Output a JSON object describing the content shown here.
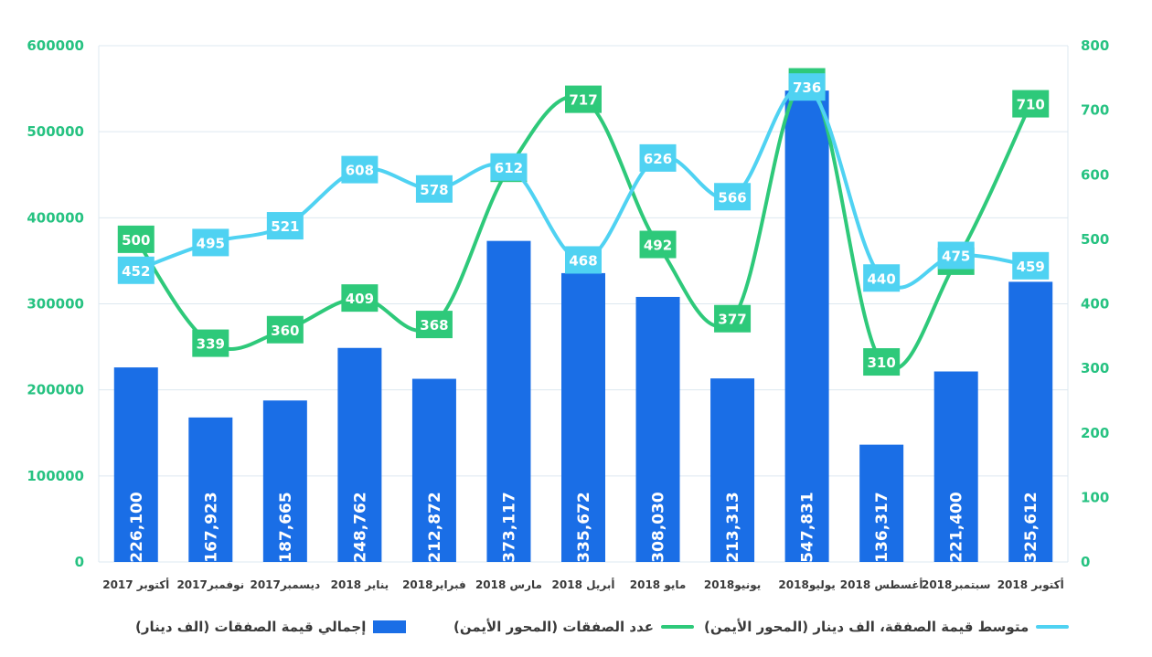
{
  "chart_data": {
    "type": "bar",
    "categories": [
      "أكتوبر 2017",
      "نوفمبر2017",
      "ديسمبر2017",
      "يناير 2018",
      "فبراير2018",
      "مارس 2018",
      "أبريل 2018",
      "مايو 2018",
      "يونيو2018",
      "يوليو2018",
      "أغسطس 2018",
      "سبتمبر2018",
      "أكتوبر 2018"
    ],
    "series": [
      {
        "name": "إجمالي قيمة الصفقات (الف دينار)",
        "type": "bar",
        "axis": "left",
        "values": [
          226100,
          167923,
          187665,
          248762,
          212872,
          373117,
          335672,
          308030,
          213313,
          547831,
          136317,
          221400,
          325612
        ],
        "data_labels": [
          "226,100",
          "167,923",
          "187,665",
          "248,762",
          "212,872",
          "373,117",
          "335,672",
          "308,030",
          "213,313",
          "547,831",
          "136,317",
          "221,400",
          "325,612"
        ]
      },
      {
        "name": "عدد الصفقات (المحور الأيمن)",
        "type": "line",
        "axis": "right",
        "values": [
          500,
          339,
          360,
          409,
          368,
          610,
          717,
          492,
          377,
          744,
          310,
          466,
          710
        ]
      },
      {
        "name": "متوسط قيمة الصفقة، الف دينار (المحور الأيمن)",
        "type": "line",
        "axis": "right",
        "values": [
          452,
          495,
          521,
          608,
          578,
          612,
          468,
          626,
          566,
          736,
          440,
          475,
          459
        ]
      }
    ],
    "left_axis": {
      "ylim": [
        0,
        600000
      ],
      "ticks": [
        "0",
        "100000",
        "200000",
        "300000",
        "400000",
        "500000",
        "600000"
      ]
    },
    "right_axis": {
      "ylim": [
        0,
        800
      ],
      "ticks": [
        "0",
        "100",
        "200",
        "300",
        "400",
        "500",
        "600",
        "700",
        "800"
      ]
    },
    "grid": true,
    "legend_position": "bottom",
    "colors": {
      "bar": "#1a6ee6",
      "count_line": "#2ec97a",
      "avg_line": "#4fd2f2",
      "left_axis_text": "#26c281",
      "right_axis_text": "#26c281",
      "grid": "#dde8f0"
    }
  },
  "legend": [
    {
      "label": "إجمالي قيمة الصفقات (الف دينار)"
    },
    {
      "label": "عدد الصفقات (المحور الأيمن)"
    },
    {
      "label": "متوسط قيمة الصفقة، الف دينار (المحور الأيمن)"
    }
  ]
}
